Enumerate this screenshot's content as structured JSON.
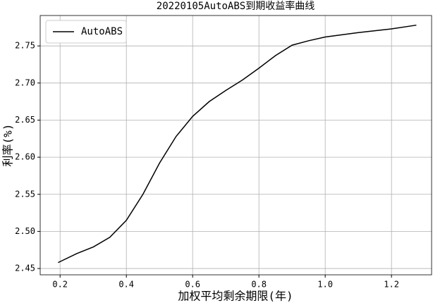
{
  "chart_data": {
    "type": "line",
    "title": "20220105AutoABS到期收益率曲线",
    "xlabel": "加权平均剩余期限(年)",
    "ylabel": "利率(%)",
    "x": [
      0.194,
      0.25,
      0.3,
      0.35,
      0.4,
      0.45,
      0.5,
      0.55,
      0.6,
      0.65,
      0.7,
      0.75,
      0.8,
      0.85,
      0.9,
      0.95,
      1.0,
      1.1,
      1.2,
      1.275
    ],
    "series": [
      {
        "name": "AutoABS",
        "color": "#000000",
        "values": [
          2.458,
          2.47,
          2.479,
          2.492,
          2.515,
          2.55,
          2.592,
          2.628,
          2.655,
          2.675,
          2.69,
          2.704,
          2.72,
          2.737,
          2.751,
          2.757,
          2.762,
          2.768,
          2.773,
          2.778
        ]
      }
    ],
    "xlim": [
      0.14,
      1.321
    ],
    "ylim": [
      2.4415,
      2.791
    ],
    "xticks": [
      0.2,
      0.4,
      0.6,
      0.8,
      {
        "value": 1.0,
        "label": "1.0"
      },
      1.2
    ],
    "yticks": [
      2.45,
      {
        "value": 2.5,
        "label": "2.50"
      },
      2.55,
      {
        "value": 2.6,
        "label": "2.60"
      },
      2.65,
      {
        "value": 2.7,
        "label": "2.70"
      },
      2.75
    ],
    "grid": true,
    "legend": "upper left"
  }
}
